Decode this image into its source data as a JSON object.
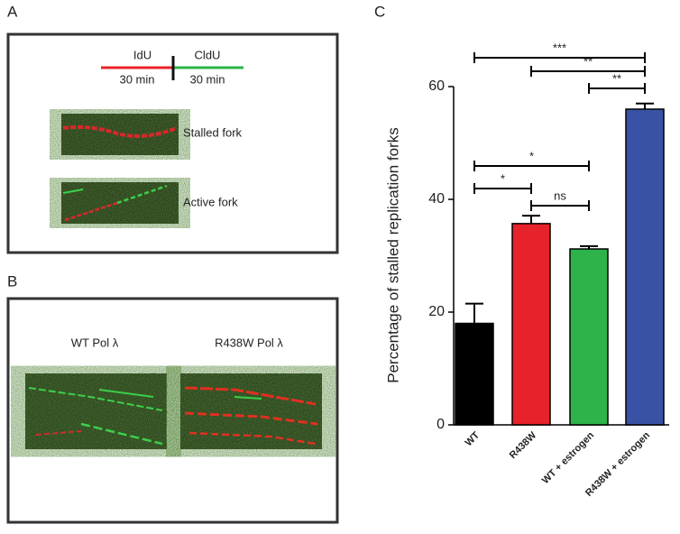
{
  "panels": {
    "A": {
      "label": "A",
      "first_label": "IdU",
      "second_label": "CldU",
      "first_time": "30 min",
      "second_time": "30 min",
      "stalled": "Stalled fork",
      "active": "Active fork"
    },
    "B": {
      "label": "B",
      "left": "WT Pol λ",
      "right": "R438W Pol λ"
    },
    "C": {
      "label": "C"
    }
  },
  "chart_data": {
    "type": "bar",
    "y_label": "Percentage of stalled replication forks",
    "categories": [
      "WT",
      "R438W",
      "WT + estrogen",
      "R438W + estrogen"
    ],
    "values": [
      18,
      35.7,
      31.2,
      56
    ],
    "errors": [
      3.5,
      1.4,
      0.5,
      1.0
    ],
    "colors": [
      "#000000",
      "#e8222a",
      "#2db34a",
      "#3a52a5"
    ],
    "ylim": [
      0,
      60
    ],
    "yticks": [
      0,
      20,
      40,
      60
    ],
    "comparisons": [
      {
        "from": 0,
        "to": 3,
        "label": "***"
      },
      {
        "from": 1,
        "to": 3,
        "label": "**"
      },
      {
        "from": 2,
        "to": 3,
        "label": "**"
      },
      {
        "from": 0,
        "to": 2,
        "label": "*"
      },
      {
        "from": 0,
        "to": 1,
        "label": "*"
      },
      {
        "from": 1,
        "to": 2,
        "label": "ns"
      }
    ]
  }
}
